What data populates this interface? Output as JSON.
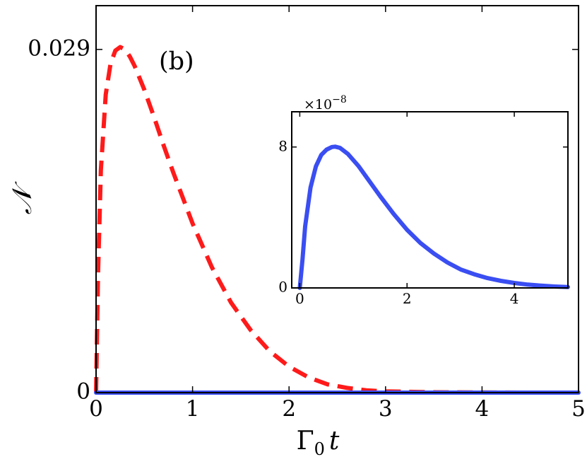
{
  "chart_data": [
    {
      "type": "line",
      "panel_label": "(b)",
      "xlabel": "Γ",
      "xlabel_sub": "0",
      "xlabel_var": "t",
      "ylabel": "𝒩",
      "xlim": [
        0,
        5
      ],
      "ylim": [
        0,
        0.0327
      ],
      "x_ticks": [
        0,
        1,
        2,
        3,
        4,
        5
      ],
      "x_tick_labels": [
        "0",
        "1",
        "2",
        "3",
        "4",
        "5"
      ],
      "y_ticks": [
        0,
        0.029
      ],
      "y_tick_labels": [
        "0",
        "0.029"
      ],
      "grid": false,
      "series": [
        {
          "style": "dashed",
          "color": "#ff1a1a",
          "x": [
            0,
            0.02,
            0.05,
            0.1,
            0.15,
            0.2,
            0.25,
            0.3,
            0.35,
            0.4,
            0.5,
            0.6,
            0.7,
            0.8,
            1.0,
            1.2,
            1.4,
            1.6,
            1.8,
            2.0,
            2.2,
            2.4,
            2.6,
            2.8,
            3.0,
            3.5,
            4.0,
            4.5,
            5.0
          ],
          "y": [
            0,
            0.0098,
            0.0188,
            0.0252,
            0.0278,
            0.0289,
            0.0292,
            0.029,
            0.0284,
            0.0276,
            0.0256,
            0.0233,
            0.0209,
            0.0186,
            0.0143,
            0.0106,
            0.0076,
            0.0053,
            0.0035,
            0.0022,
            0.0013,
            0.0007,
            0.0004,
            0.0002,
            0.0001,
            3e-05,
            1e-05,
            0,
            0
          ]
        },
        {
          "style": "solid",
          "color": "#3a4ef2",
          "x": [
            0,
            5
          ],
          "y": [
            0,
            0
          ]
        }
      ]
    },
    {
      "type": "line",
      "inset": true,
      "scale_label": "×10",
      "scale_exponent": "−8",
      "xlim": [
        -0.15,
        5
      ],
      "ylim": [
        0,
        10
      ],
      "x_ticks": [
        0,
        2,
        4
      ],
      "x_tick_labels": [
        "0",
        "2",
        "4"
      ],
      "y_ticks": [
        0,
        8
      ],
      "y_tick_labels": [
        "0",
        "8"
      ],
      "grid": false,
      "series": [
        {
          "style": "solid",
          "color": "#3a4ef2",
          "x": [
            0,
            0.05,
            0.1,
            0.2,
            0.3,
            0.4,
            0.5,
            0.6,
            0.66,
            0.75,
            0.9,
            1.1,
            1.3,
            1.5,
            1.75,
            2.0,
            2.25,
            2.5,
            2.75,
            3.0,
            3.25,
            3.5,
            3.75,
            4.0,
            4.25,
            4.5,
            4.75,
            5.0
          ],
          "y": [
            0,
            1.6,
            3.5,
            5.7,
            6.9,
            7.55,
            7.85,
            8.0,
            8.02,
            7.95,
            7.6,
            6.9,
            6.05,
            5.2,
            4.2,
            3.3,
            2.55,
            1.95,
            1.45,
            1.05,
            0.78,
            0.56,
            0.4,
            0.28,
            0.19,
            0.13,
            0.08,
            0.05
          ]
        }
      ]
    }
  ]
}
